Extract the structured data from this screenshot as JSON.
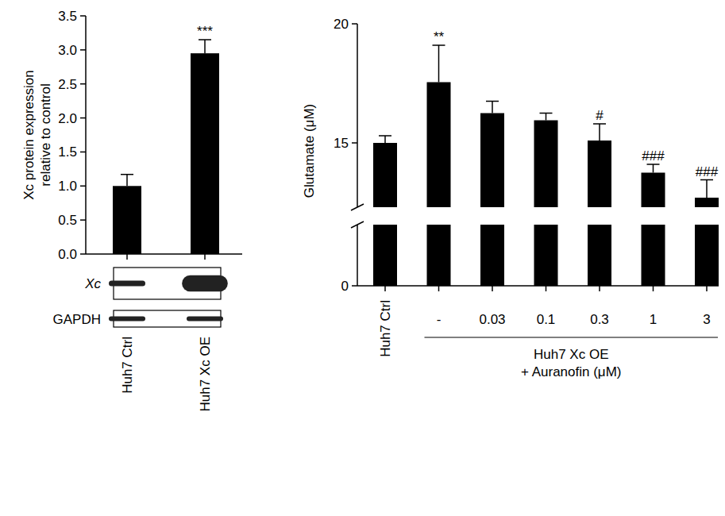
{
  "chart_data": [
    {
      "type": "bar",
      "y_label": [
        "Xc protein expression",
        "relative to control"
      ],
      "categories": [
        "Huh7 Ctrl",
        "Huh7 Xc OE"
      ],
      "values": [
        1.0,
        2.95
      ],
      "errors": [
        0.17,
        0.2
      ],
      "color": "#000000",
      "ylim": [
        0,
        3.5
      ],
      "yticks": [
        {
          "value": 0,
          "label": "0.0"
        },
        0.5,
        {
          "value": 1,
          "label": "1.0"
        },
        1.5,
        {
          "value": 2,
          "label": "2.0"
        },
        2.5,
        {
          "value": 3,
          "label": "3.0"
        },
        3.5
      ],
      "annotations": [
        {
          "category": "Huh7 Xc OE",
          "text": "***"
        }
      ],
      "blot": {
        "rows": [
          "Xc",
          "GAPDH"
        ]
      }
    },
    {
      "type": "bar",
      "y_label": [
        "Glutamate (μM)"
      ],
      "categories": [
        "Huh7 Ctrl",
        "-",
        "0.03",
        "0.1",
        "0.3",
        "1",
        "3"
      ],
      "values": [
        15.0,
        17.55,
        16.25,
        15.95,
        15.1,
        13.75,
        12.7
      ],
      "errors": [
        0.3,
        1.55,
        0.5,
        0.3,
        0.7,
        0.35,
        0.75
      ],
      "color": "#000000",
      "ylim": [
        0,
        20
      ],
      "ybreak": [
        2.5,
        12.3
      ],
      "yticks": [
        0,
        15,
        20
      ],
      "group": {
        "label": [
          "Huh7 Xc OE",
          "+ Auranofin (μM)"
        ],
        "categories": [
          "-",
          "0.03",
          "0.1",
          "0.3",
          "1",
          "3"
        ]
      },
      "annotations": [
        {
          "category": "-",
          "text": "**"
        },
        {
          "category": "0.3",
          "text": "#"
        },
        {
          "category": "1",
          "text": "###"
        },
        {
          "category": "3",
          "text": "###"
        }
      ]
    }
  ]
}
